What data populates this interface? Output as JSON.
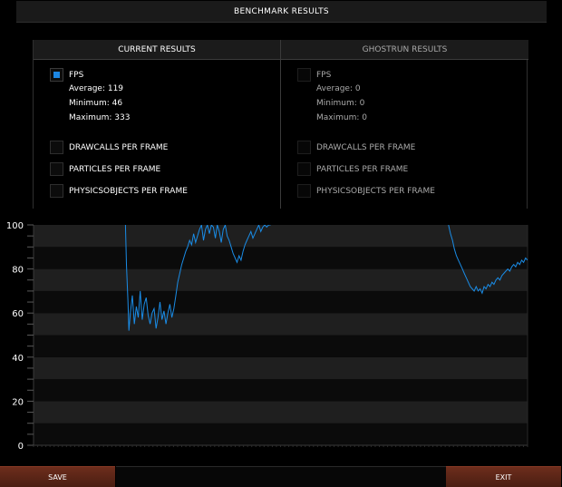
{
  "title": "BENCHMARK RESULTS",
  "current": {
    "header": "CURRENT RESULTS",
    "fps_label": "FPS",
    "average": "Average: 119",
    "minimum": "Minimum: 46",
    "maximum": "Maximum: 333",
    "drawcalls": "DRAWCALLS PER FRAME",
    "particles": "PARTICLES PER FRAME",
    "physics": "PHYSICSOBJECTS PER FRAME"
  },
  "ghost": {
    "header": "GHOSTRUN RESULTS",
    "fps_label": "FPS",
    "average": "Average: 0",
    "minimum": "Minimum: 0",
    "maximum": "Maximum: 0",
    "drawcalls": "DRAWCALLS PER FRAME",
    "particles": "PARTICLES PER FRAME",
    "physics": "PHYSICSOBJECTS PER FRAME"
  },
  "buttons": {
    "save": "SAVE",
    "exit": "EXIT"
  },
  "colors": {
    "accent": "#1c86e2",
    "line": "#1a8ce6",
    "button": "#5a2517"
  },
  "chart_data": {
    "type": "line",
    "title": "",
    "xlabel": "",
    "ylabel": "",
    "ylim": [
      0,
      100
    ],
    "y_ticks": [
      0,
      20,
      40,
      60,
      80,
      100
    ],
    "y_tick_labels": [
      "0",
      "20",
      "40",
      "60",
      "80",
      "100"
    ],
    "series": [
      {
        "color": "#1a8ce6",
        "x": [
          0,
          2,
          4,
          6,
          8,
          10,
          12,
          14,
          16,
          18,
          20,
          22,
          24,
          26,
          28,
          30,
          32,
          34,
          36,
          38,
          40,
          42,
          44,
          46,
          48,
          50,
          52,
          54,
          56,
          58,
          60,
          62,
          64,
          66,
          68,
          70,
          72,
          74,
          76,
          78,
          80,
          82,
          84,
          86,
          88,
          90,
          92,
          94,
          96,
          98,
          100
        ],
        "y": [
          null,
          null,
          null,
          null,
          null,
          null,
          null,
          null,
          null,
          null,
          null,
          null,
          null,
          null,
          null,
          null,
          null,
          null,
          null,
          null,
          "100",
          null,
          null,
          null,
          null,
          null,
          null,
          null,
          null,
          null,
          null,
          null,
          null,
          null,
          null,
          null,
          null,
          null,
          null,
          null,
          null,
          null,
          null,
          null,
          null,
          null,
          null,
          null,
          null,
          null,
          null
        ]
      }
    ],
    "segments": [
      {
        "x": [
          18.6,
          18.8,
          19.1,
          19.3,
          19.6,
          20.0,
          20.4,
          20.8,
          21.2,
          21.6,
          22.0,
          22.4,
          22.8,
          23.2,
          23.6,
          24.0,
          24.4,
          24.8,
          25.2,
          25.6,
          26.0,
          26.4,
          26.8,
          27.2,
          27.6,
          28.0,
          28.4,
          28.8,
          29.2,
          29.6,
          30.0,
          30.4,
          30.8,
          31.2,
          31.6,
          32.0,
          32.4,
          32.8,
          33.2,
          33.6,
          34.0,
          34.4,
          34.8,
          35.2,
          35.6,
          36.0,
          36.4,
          36.8,
          37.2,
          37.6,
          38.0,
          38.4,
          38.8,
          39.2,
          39.6,
          40.0,
          40.4,
          40.8,
          41.2,
          41.6,
          42.0,
          42.4,
          42.8,
          43.2,
          43.6,
          44.0,
          44.4,
          44.8,
          45.2,
          45.6,
          46.0,
          46.4,
          46.8,
          47.2,
          47.6,
          48.0
        ],
        "y": [
          100,
          82,
          66,
          52,
          60,
          68,
          55,
          63,
          58,
          70,
          57,
          64,
          67,
          59,
          55,
          60,
          62,
          53,
          58,
          65,
          57,
          61,
          55,
          60,
          64,
          58,
          62,
          68,
          74,
          78,
          82,
          85,
          88,
          90,
          93,
          91,
          96,
          92,
          95,
          98,
          100,
          93,
          98,
          100,
          96,
          100,
          99,
          94,
          100,
          97,
          92,
          98,
          100,
          95,
          93,
          90,
          87,
          85,
          83,
          86,
          84,
          88,
          91,
          93,
          95,
          97,
          94,
          96,
          98,
          100,
          97,
          99,
          100,
          99,
          100,
          100
        ]
      },
      {
        "x": [
          84.0,
          84.4,
          84.8,
          85.2,
          85.6,
          86.0,
          86.4,
          86.8,
          87.2,
          87.6,
          88.0,
          88.4,
          88.8,
          89.2,
          89.6,
          90.0,
          90.4,
          90.8,
          91.2,
          91.6,
          92.0,
          92.4,
          92.8,
          93.2,
          93.6,
          94.0,
          94.4,
          94.8,
          95.2,
          95.6,
          96.0,
          96.4,
          96.8,
          97.2,
          97.6,
          98.0,
          98.4,
          98.8,
          99.2,
          99.6,
          100
        ],
        "y": [
          100,
          96,
          93,
          89,
          86,
          84,
          82,
          80,
          78,
          76,
          74,
          72,
          71,
          70,
          72,
          70,
          71,
          69,
          72,
          71,
          73,
          72,
          74,
          73,
          75,
          76,
          75,
          77,
          78,
          79,
          80,
          79,
          81,
          82,
          81,
          83,
          82,
          84,
          83,
          85,
          84
        ]
      }
    ]
  }
}
